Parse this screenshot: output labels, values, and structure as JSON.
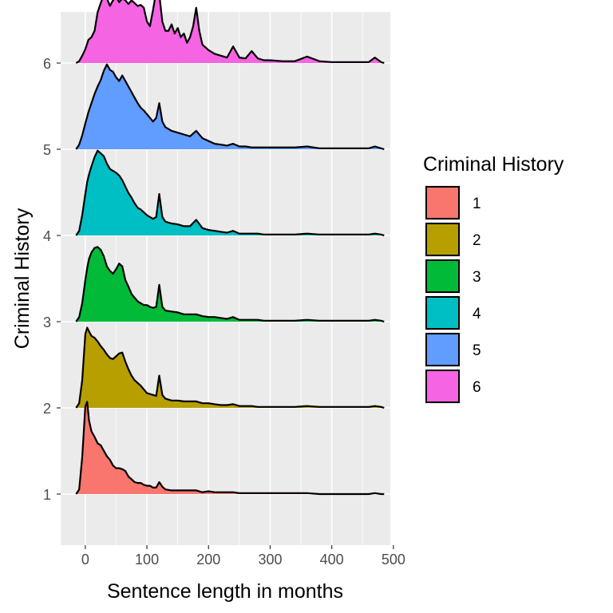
{
  "chart_data": {
    "type": "ridgeline",
    "xlabel": "Sentence length in months",
    "ylabel": "Criminal History",
    "xlim": [
      -40,
      495
    ],
    "x_ticks": [
      0,
      100,
      200,
      300,
      400,
      500
    ],
    "x_tick_labels": [
      "0",
      "100",
      "200",
      "300",
      "400",
      "500"
    ],
    "y_tick_labels": [
      "1",
      "2",
      "3",
      "4",
      "5",
      "6"
    ],
    "grid": true,
    "legend": {
      "title": "Criminal History",
      "placement": "right",
      "entries": [
        "1",
        "2",
        "3",
        "4",
        "5",
        "6"
      ]
    },
    "series": [
      {
        "name": "1",
        "color": "#F8766D",
        "x": [
          -15,
          -10,
          -5,
          0,
          3,
          6,
          10,
          15,
          20,
          25,
          30,
          35,
          40,
          45,
          50,
          55,
          60,
          65,
          70,
          75,
          80,
          85,
          90,
          95,
          100,
          105,
          110,
          115,
          120,
          125,
          130,
          140,
          150,
          160,
          170,
          180,
          190,
          200,
          210,
          220,
          230,
          240,
          250,
          260,
          270,
          280,
          290,
          300,
          320,
          340,
          360,
          380,
          400,
          420,
          440,
          460,
          470,
          480,
          485
        ],
        "y": [
          0.0,
          0.05,
          0.4,
          0.95,
          1.0,
          0.8,
          0.68,
          0.62,
          0.55,
          0.53,
          0.47,
          0.41,
          0.37,
          0.31,
          0.28,
          0.28,
          0.27,
          0.25,
          0.19,
          0.16,
          0.13,
          0.12,
          0.12,
          0.1,
          0.09,
          0.09,
          0.07,
          0.07,
          0.13,
          0.08,
          0.05,
          0.04,
          0.04,
          0.04,
          0.04,
          0.04,
          0.02,
          0.03,
          0.02,
          0.02,
          0.02,
          0.02,
          0.01,
          0.01,
          0.01,
          0.01,
          0.01,
          0.01,
          0.01,
          0.01,
          0.01,
          0.0,
          0.0,
          0.0,
          0.0,
          0.0,
          0.01,
          0.0,
          0.0
        ]
      },
      {
        "name": "2",
        "color": "#B79F00",
        "x": [
          -15,
          -10,
          -5,
          0,
          3,
          6,
          10,
          15,
          20,
          25,
          30,
          35,
          40,
          45,
          50,
          55,
          60,
          65,
          70,
          75,
          80,
          85,
          90,
          95,
          100,
          105,
          110,
          115,
          120,
          125,
          130,
          140,
          150,
          160,
          170,
          180,
          190,
          200,
          210,
          220,
          230,
          240,
          250,
          260,
          270,
          280,
          290,
          300,
          320,
          340,
          360,
          380,
          400,
          420,
          440,
          460,
          470,
          480,
          485
        ],
        "y": [
          0.0,
          0.05,
          0.3,
          0.8,
          0.87,
          0.83,
          0.78,
          0.76,
          0.72,
          0.67,
          0.63,
          0.58,
          0.54,
          0.53,
          0.56,
          0.59,
          0.6,
          0.5,
          0.42,
          0.35,
          0.3,
          0.27,
          0.24,
          0.2,
          0.16,
          0.15,
          0.14,
          0.13,
          0.35,
          0.14,
          0.1,
          0.08,
          0.08,
          0.07,
          0.07,
          0.07,
          0.05,
          0.05,
          0.04,
          0.03,
          0.03,
          0.04,
          0.02,
          0.02,
          0.02,
          0.01,
          0.01,
          0.01,
          0.01,
          0.01,
          0.02,
          0.01,
          0.01,
          0.01,
          0.01,
          0.01,
          0.02,
          0.01,
          0.0
        ]
      },
      {
        "name": "3",
        "color": "#00BA38",
        "x": [
          -15,
          -10,
          -5,
          0,
          3,
          6,
          10,
          15,
          20,
          25,
          30,
          35,
          40,
          45,
          50,
          55,
          60,
          65,
          70,
          75,
          80,
          85,
          90,
          95,
          100,
          105,
          110,
          115,
          120,
          125,
          130,
          140,
          150,
          160,
          170,
          180,
          190,
          200,
          210,
          220,
          230,
          240,
          250,
          260,
          270,
          280,
          290,
          300,
          320,
          340,
          360,
          380,
          400,
          420,
          440,
          460,
          470,
          480,
          485
        ],
        "y": [
          0.0,
          0.05,
          0.2,
          0.45,
          0.58,
          0.68,
          0.75,
          0.8,
          0.81,
          0.78,
          0.71,
          0.6,
          0.55,
          0.52,
          0.57,
          0.63,
          0.6,
          0.45,
          0.38,
          0.3,
          0.26,
          0.22,
          0.2,
          0.18,
          0.18,
          0.16,
          0.15,
          0.16,
          0.4,
          0.16,
          0.12,
          0.11,
          0.1,
          0.08,
          0.08,
          0.08,
          0.06,
          0.05,
          0.05,
          0.04,
          0.03,
          0.05,
          0.02,
          0.02,
          0.02,
          0.02,
          0.01,
          0.01,
          0.01,
          0.01,
          0.02,
          0.01,
          0.01,
          0.01,
          0.01,
          0.01,
          0.02,
          0.01,
          0.0
        ]
      },
      {
        "name": "4",
        "color": "#00BFC4",
        "x": [
          -15,
          -10,
          -5,
          0,
          3,
          6,
          10,
          15,
          20,
          25,
          30,
          35,
          40,
          45,
          50,
          55,
          60,
          65,
          70,
          75,
          80,
          85,
          90,
          95,
          100,
          105,
          110,
          115,
          120,
          125,
          130,
          140,
          150,
          160,
          170,
          180,
          190,
          200,
          210,
          220,
          230,
          240,
          250,
          260,
          270,
          280,
          290,
          300,
          320,
          340,
          360,
          380,
          400,
          420,
          440,
          460,
          470,
          480,
          485
        ],
        "y": [
          0.0,
          0.05,
          0.22,
          0.45,
          0.58,
          0.66,
          0.75,
          0.85,
          0.92,
          0.89,
          0.86,
          0.78,
          0.72,
          0.7,
          0.68,
          0.65,
          0.6,
          0.53,
          0.46,
          0.41,
          0.35,
          0.3,
          0.28,
          0.25,
          0.22,
          0.2,
          0.18,
          0.2,
          0.45,
          0.2,
          0.15,
          0.13,
          0.12,
          0.1,
          0.1,
          0.17,
          0.08,
          0.06,
          0.05,
          0.04,
          0.03,
          0.05,
          0.02,
          0.02,
          0.02,
          0.02,
          0.01,
          0.01,
          0.01,
          0.01,
          0.02,
          0.01,
          0.01,
          0.01,
          0.01,
          0.01,
          0.02,
          0.01,
          0.0
        ]
      },
      {
        "name": "5",
        "color": "#619CFF",
        "x": [
          -15,
          -10,
          -5,
          0,
          5,
          10,
          15,
          20,
          25,
          30,
          35,
          40,
          45,
          50,
          55,
          60,
          65,
          70,
          75,
          80,
          85,
          90,
          95,
          100,
          105,
          110,
          115,
          120,
          125,
          130,
          140,
          150,
          160,
          170,
          180,
          190,
          200,
          210,
          220,
          230,
          240,
          250,
          260,
          270,
          280,
          290,
          300,
          320,
          340,
          360,
          380,
          400,
          420,
          440,
          460,
          470,
          480,
          485
        ],
        "y": [
          0.0,
          0.05,
          0.15,
          0.28,
          0.4,
          0.5,
          0.6,
          0.68,
          0.75,
          0.85,
          0.92,
          0.86,
          0.84,
          0.78,
          0.74,
          0.8,
          0.74,
          0.68,
          0.62,
          0.56,
          0.5,
          0.45,
          0.42,
          0.38,
          0.34,
          0.3,
          0.34,
          0.5,
          0.3,
          0.24,
          0.2,
          0.18,
          0.16,
          0.14,
          0.2,
          0.12,
          0.09,
          0.06,
          0.05,
          0.04,
          0.06,
          0.03,
          0.03,
          0.02,
          0.02,
          0.02,
          0.02,
          0.02,
          0.02,
          0.03,
          0.01,
          0.01,
          0.01,
          0.01,
          0.01,
          0.03,
          0.01,
          0.0
        ]
      },
      {
        "name": "6",
        "color": "#F564E3",
        "x": [
          -15,
          -10,
          -5,
          0,
          5,
          10,
          15,
          20,
          25,
          30,
          35,
          40,
          45,
          50,
          55,
          60,
          65,
          70,
          75,
          80,
          85,
          90,
          95,
          100,
          105,
          110,
          115,
          120,
          125,
          130,
          135,
          140,
          145,
          150,
          155,
          160,
          165,
          170,
          175,
          180,
          185,
          190,
          200,
          210,
          220,
          230,
          240,
          250,
          260,
          270,
          280,
          290,
          300,
          320,
          340,
          360,
          380,
          400,
          420,
          440,
          460,
          470,
          480,
          485
        ],
        "y": [
          0.0,
          0.02,
          0.08,
          0.15,
          0.25,
          0.28,
          0.35,
          0.55,
          0.65,
          0.74,
          0.7,
          0.62,
          0.68,
          0.72,
          0.66,
          0.7,
          0.68,
          0.64,
          0.68,
          0.65,
          0.62,
          0.63,
          0.6,
          0.45,
          0.4,
          0.58,
          0.78,
          0.75,
          0.45,
          0.35,
          0.35,
          0.42,
          0.32,
          0.38,
          0.28,
          0.32,
          0.22,
          0.28,
          0.4,
          0.6,
          0.35,
          0.2,
          0.14,
          0.1,
          0.08,
          0.06,
          0.18,
          0.06,
          0.05,
          0.13,
          0.05,
          0.03,
          0.03,
          0.02,
          0.02,
          0.07,
          0.02,
          0.01,
          0.01,
          0.01,
          0.01,
          0.06,
          0.01,
          0.0
        ]
      }
    ]
  }
}
